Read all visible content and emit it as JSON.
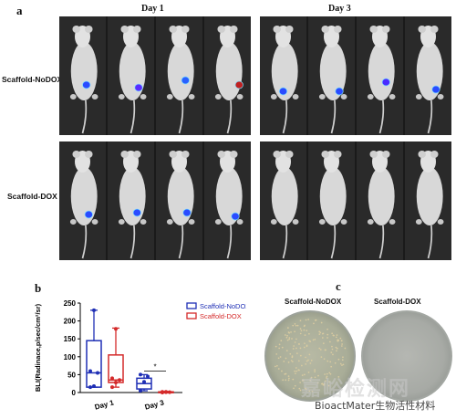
{
  "panel_a": {
    "letter": "a",
    "day1_title": "Day 1",
    "day3_title": "Day 3",
    "row1_label": "Scaffold-NoDOX",
    "row2_label": "Scaffold-DOX"
  },
  "panel_b": {
    "letter": "b"
  },
  "panel_c": {
    "letter": "c",
    "dish1_label": "Scaffold-NoDOX",
    "dish2_label": "Scaffold-DOX"
  },
  "watermark": {
    "text": "BioactMater生物活性材料",
    "big_text": "嘉峪检测网"
  },
  "chart_data": {
    "type": "box",
    "ylabel": "BLI(Radinace,p/sec/cm²/sr)",
    "ylim": [
      0,
      250
    ],
    "yticks": [
      0,
      50,
      100,
      150,
      200,
      250
    ],
    "categories": [
      "Day 1",
      "Day 3"
    ],
    "significance": "*",
    "series": [
      {
        "name": "Scaffold-NoDOX",
        "color": "#1f2fb5",
        "boxes": [
          {
            "min": 15,
            "q1": 15,
            "median": 55,
            "q3": 145,
            "max": 230,
            "points": [
              15,
              18,
              55,
              60,
              230
            ]
          },
          {
            "min": 5,
            "q1": 10,
            "median": 25,
            "q3": 40,
            "max": 50,
            "points": [
              5,
              30,
              45,
              50
            ]
          }
        ]
      },
      {
        "name": "Scaffold-DOX",
        "color": "#d42a2a",
        "boxes": [
          {
            "min": 15,
            "q1": 28,
            "median": 35,
            "q3": 105,
            "max": 180,
            "points": [
              15,
              28,
              35,
              40,
              178
            ]
          },
          {
            "min": 0,
            "q1": 0,
            "median": 1,
            "q3": 2,
            "max": 3,
            "points": [
              0,
              1,
              1,
              2,
              2
            ]
          }
        ]
      }
    ]
  }
}
